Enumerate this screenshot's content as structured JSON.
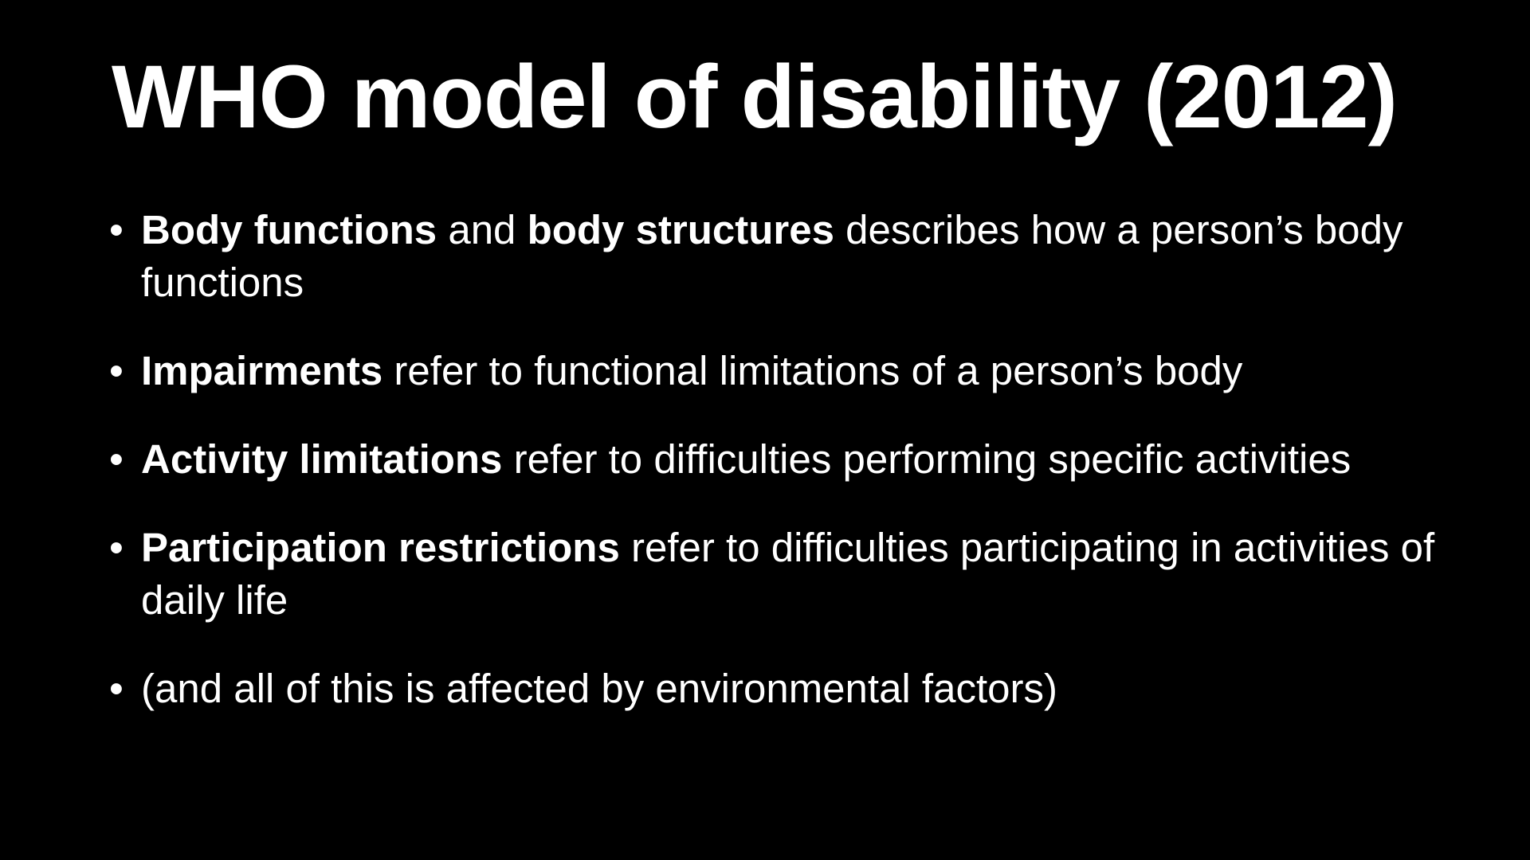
{
  "slide": {
    "title": "WHO model of disability (2012)",
    "bullet_glyph": "•",
    "bullets": [
      {
        "bold1": "Body functions",
        "text1": " and ",
        "bold2": "body structures",
        "text2": " describes how a person’s body functions"
      },
      {
        "bold1": "Impairments",
        "text1": " refer to functional limitations of a person’s body"
      },
      {
        "bold1": "Activity limitations",
        "text1": " refer to difficulties performing specific activities"
      },
      {
        "bold1": "Participation restrictions",
        "text1": " refer to difficulties participating in activities of daily life"
      },
      {
        "text1": "(and all of this is affected by environmental factors)"
      }
    ]
  },
  "colors": {
    "background": "#000000",
    "text": "#ffffff"
  }
}
